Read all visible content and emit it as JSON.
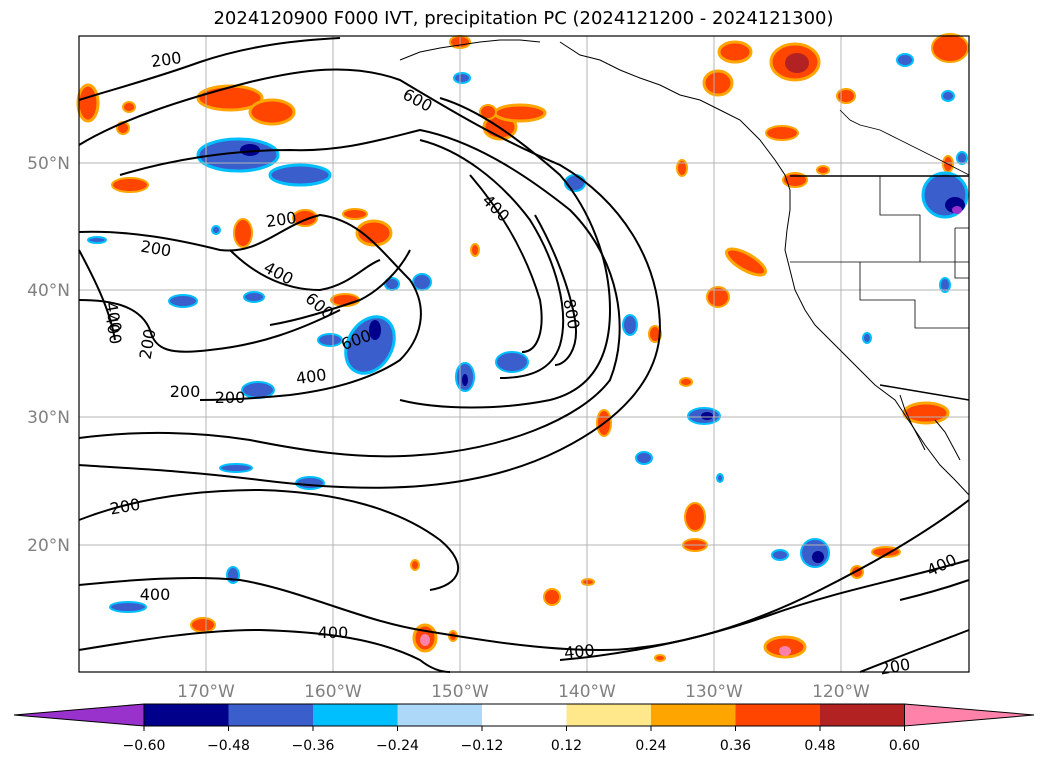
{
  "title": "2024120900 F000 IVT, precipitation PC (2024121200 - 2024121300)",
  "map": {
    "projection": "PlateCarree",
    "lon_range": [
      -180,
      -110
    ],
    "lat_range": [
      10,
      60
    ],
    "gridlines": true,
    "lon_ticks": [
      "170°W",
      "160°W",
      "150°W",
      "140°W",
      "130°W",
      "120°W"
    ],
    "lat_ticks": [
      "50°N",
      "40°N",
      "30°N",
      "20°N"
    ],
    "contour_color": "#000000",
    "contour_labels": [
      "200",
      "600",
      "200",
      "200",
      "400",
      "400",
      "200",
      "800",
      "600",
      "400",
      "200",
      "400",
      "200",
      "400",
      "400",
      "400",
      "400",
      "200",
      "600",
      "200",
      "400"
    ]
  },
  "colorbar": {
    "extend": "both",
    "ticks": [
      "−0.60",
      "−0.48",
      "−0.36",
      "−0.24",
      "−0.12",
      "0.12",
      "0.24",
      "0.36",
      "0.48",
      "0.60"
    ],
    "colors": [
      "#9932cc",
      "#00008b",
      "#3a5fcd",
      "#00bfff",
      "#add8f8",
      "#ffffff",
      "#ffe88c",
      "#ffa500",
      "#ff4500",
      "#b22222",
      "#ff82ab"
    ]
  }
}
